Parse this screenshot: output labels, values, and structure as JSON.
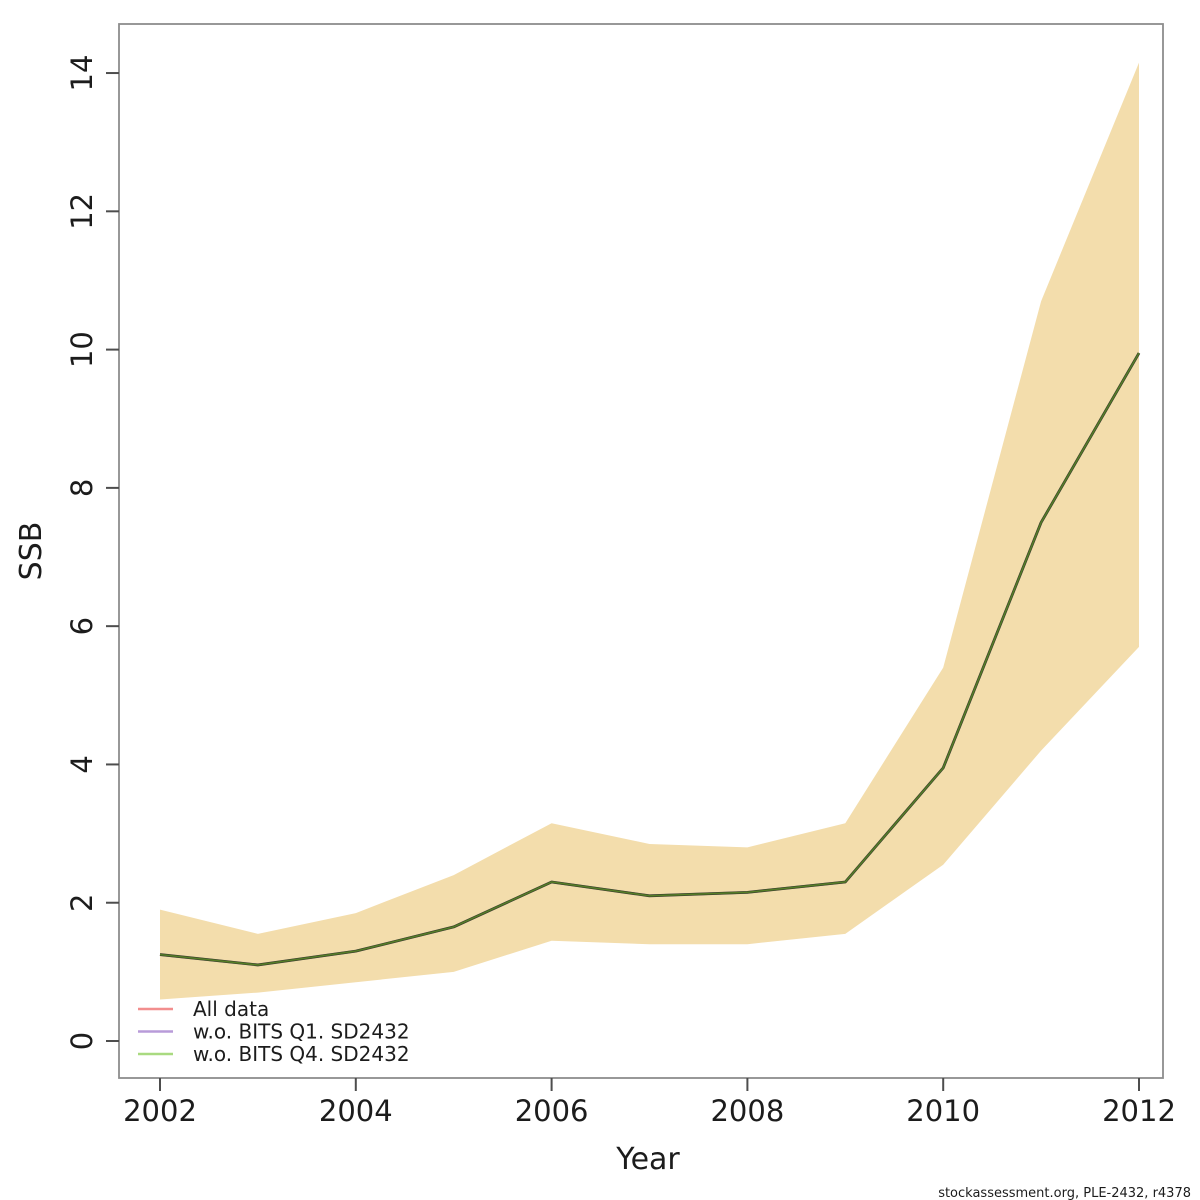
{
  "chart_data": {
    "type": "line",
    "title": "",
    "xlabel": "Year",
    "ylabel": "SSB",
    "x": [
      2002,
      2003,
      2004,
      2005,
      2006,
      2007,
      2008,
      2009,
      2010,
      2011,
      2012
    ],
    "series": [
      {
        "name": "All data",
        "legend_color": "#f28e8e",
        "values": [
          1.25,
          1.1,
          1.3,
          1.65,
          2.3,
          2.1,
          2.15,
          2.3,
          3.95,
          7.5,
          9.95
        ]
      },
      {
        "name": "w.o. BITS Q1. SD2432",
        "legend_color": "#b89bd9",
        "values": [
          1.25,
          1.1,
          1.3,
          1.65,
          2.3,
          2.1,
          2.15,
          2.3,
          3.95,
          7.5,
          9.95
        ]
      },
      {
        "name": "w.o. BITS Q4. SD2432",
        "legend_color": "#a9da80",
        "values": [
          1.25,
          1.1,
          1.3,
          1.65,
          2.3,
          2.1,
          2.15,
          2.3,
          3.95,
          7.5,
          9.95
        ]
      }
    ],
    "band": {
      "upper": [
        1.9,
        1.55,
        1.85,
        2.4,
        3.15,
        2.85,
        2.8,
        3.15,
        5.4,
        10.7,
        14.15
      ],
      "lower": [
        0.6,
        0.7,
        0.85,
        1.0,
        1.45,
        1.4,
        1.4,
        1.55,
        2.55,
        4.2,
        5.7
      ],
      "color": "#f3ddac"
    },
    "plotted_line": {
      "core_color": "#567f27",
      "edge_color": "#1e1e12"
    },
    "xlim": [
      2002,
      2012
    ],
    "ylim": [
      0,
      14
    ],
    "xticks": [
      2002,
      2004,
      2006,
      2008,
      2010,
      2012
    ],
    "yticks": [
      0,
      2,
      4,
      6,
      8,
      10,
      12,
      14
    ],
    "legend_position": "bottom-left",
    "grid": false
  },
  "footer": "stockassessment.org, PLE-2432, r4378"
}
